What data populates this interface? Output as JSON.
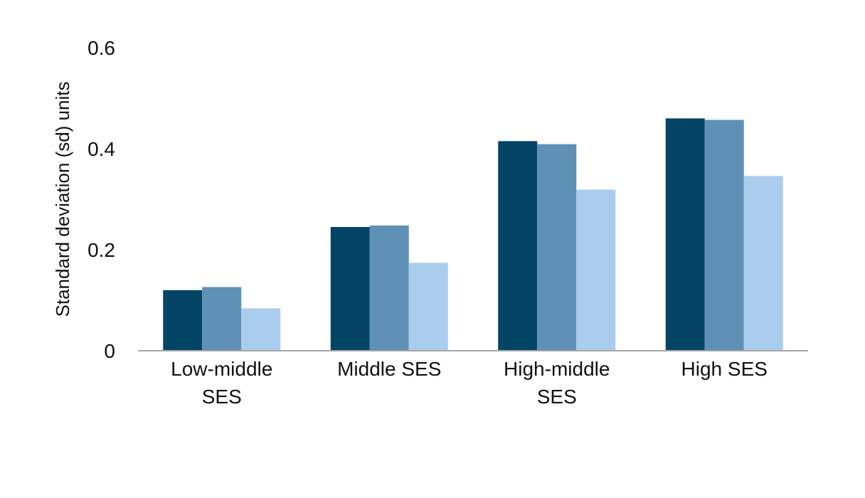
{
  "chart_data": {
    "type": "bar",
    "categories": [
      [
        "Low-middle",
        "SES"
      ],
      [
        "Middle SES"
      ],
      [
        "High-middle",
        "SES"
      ],
      [
        "High SES"
      ]
    ],
    "series": [
      {
        "color": "#044566",
        "values": [
          0.12,
          0.245,
          0.415,
          0.46
        ]
      },
      {
        "color": "#5e91b5",
        "values": [
          0.126,
          0.248,
          0.409,
          0.457
        ]
      },
      {
        "color": "#abcded",
        "values": [
          0.084,
          0.174,
          0.319,
          0.346
        ]
      }
    ],
    "ylim": [
      0,
      0.6
    ],
    "yticks": [
      {
        "value": 0,
        "label": "0"
      },
      {
        "value": 0.2,
        "label": "0.2"
      },
      {
        "value": 0.4,
        "label": "0.4"
      },
      {
        "value": 0.6,
        "label": "0.6"
      }
    ],
    "ylabel": "Standard deviation (sd) units",
    "xlabel": "",
    "title": "",
    "grid": false,
    "axis_color": "#a6a6a6"
  }
}
